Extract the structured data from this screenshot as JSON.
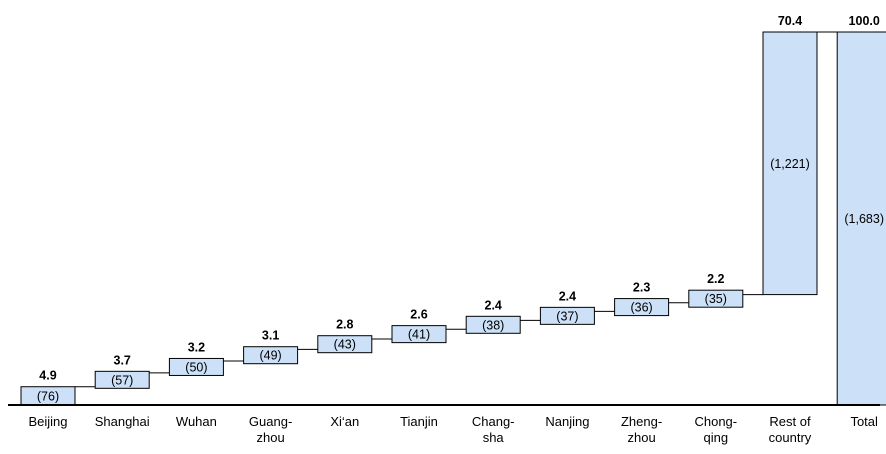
{
  "chart_data": {
    "type": "waterfall",
    "categories": [
      "Beijing",
      "Shanghai",
      "Wuhan",
      "Guang-\nzhou",
      "Xi‘an",
      "Tianjin",
      "Chang-\nsha",
      "Nanjing",
      "Zheng-\nzhou",
      "Chong-\nqing",
      "Rest of\ncountry",
      "Total"
    ],
    "values": [
      4.9,
      3.7,
      3.2,
      3.1,
      2.8,
      2.6,
      2.4,
      2.4,
      2.3,
      2.2,
      70.4,
      100.0
    ],
    "value_labels": [
      "4.9",
      "3.7",
      "3.2",
      "3.1",
      "2.8",
      "2.6",
      "2.4",
      "2.4",
      "2.3",
      "2.2",
      "70.4",
      "100.0"
    ],
    "count_labels": [
      "(76)",
      "(57)",
      "(50)",
      "(49)",
      "(43)",
      "(41)",
      "(38)",
      "(37)",
      "(36)",
      "(35)",
      "(1,221)",
      "(1,683)"
    ],
    "ylim": [
      0,
      100
    ],
    "total_index": 11,
    "bar_color": "#cce0f7",
    "bar_stroke": "#000000",
    "grid": false
  }
}
